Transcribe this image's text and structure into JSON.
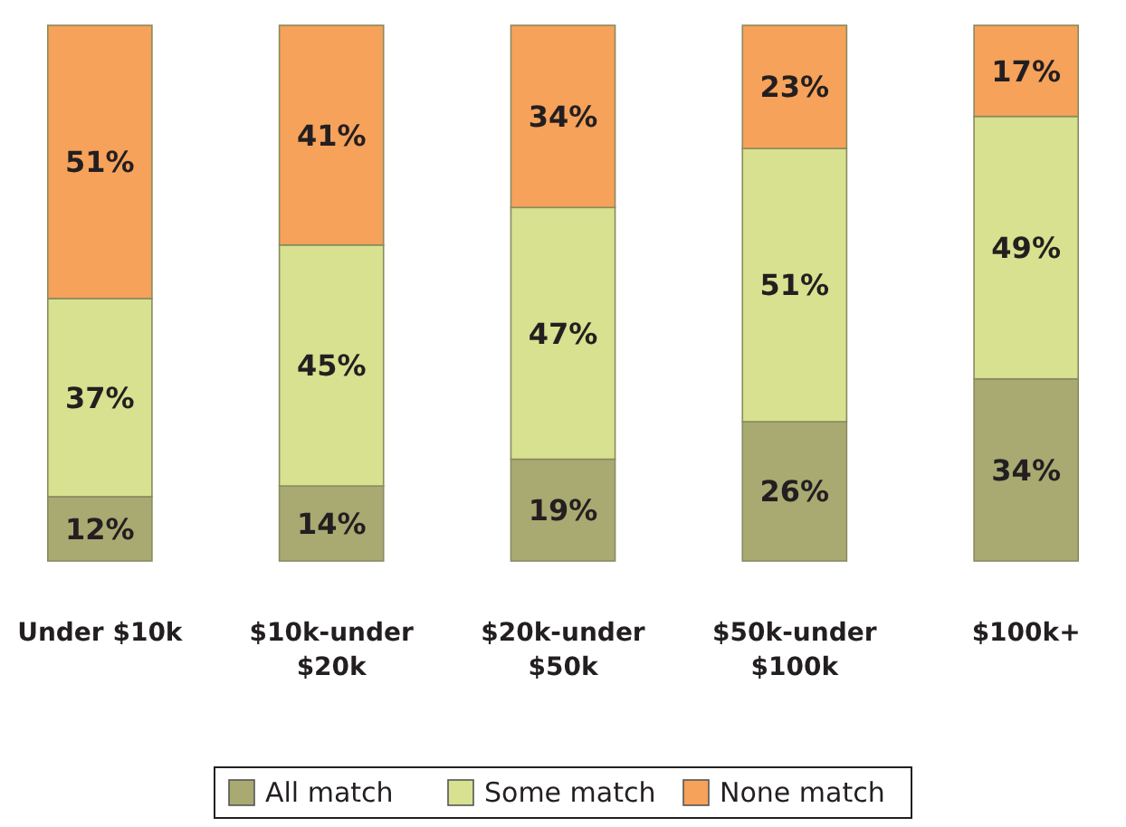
{
  "chart_data": {
    "type": "bar",
    "stacked": true,
    "legend": "bottom",
    "categories": [
      "Under $10k",
      "$10k-under $20k",
      "$20k-under $50k",
      "$50k-under $100k",
      "$100k+"
    ],
    "series": [
      {
        "name": "All match",
        "color": "#a8aa72",
        "values": [
          12,
          14,
          19,
          26,
          34
        ],
        "value_labels": [
          "12%",
          "14%",
          "19%",
          "26%",
          "34%"
        ]
      },
      {
        "name": "Some match",
        "color": "#d7e18f",
        "values": [
          37,
          45,
          47,
          51,
          49
        ],
        "value_labels": [
          "37%",
          "45%",
          "47%",
          "51%",
          "49%"
        ]
      },
      {
        "name": "None match",
        "color": "#f6a25a",
        "values": [
          51,
          41,
          34,
          23,
          17
        ],
        "value_labels": [
          "51%",
          "41%",
          "34%",
          "23%",
          "17%"
        ]
      }
    ]
  }
}
